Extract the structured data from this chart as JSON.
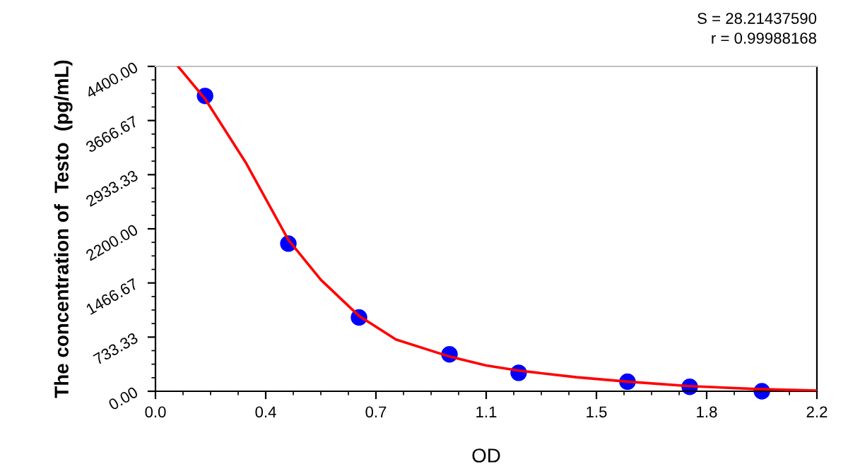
{
  "chart_data": {
    "type": "scatter",
    "xlabel": "OD",
    "ylabel": "The concentration of  Testo  (pg/mL)",
    "annotations": [
      "S = 28.21437590",
      "r = 0.99988168"
    ],
    "series": [
      {
        "color": "#0000ff",
        "marker": "circle",
        "x": [
          0.165,
          0.442,
          0.677,
          0.978,
          1.208,
          1.57,
          1.777,
          2.017
        ],
        "values": [
          4000,
          2000,
          1000,
          500,
          250,
          130,
          60,
          0
        ]
      },
      {
        "type": "line",
        "color": "#ff0000",
        "marker": "none",
        "line_style": "solid",
        "x": [
          0.075,
          0.165,
          0.3,
          0.442,
          0.55,
          0.677,
          0.8,
          0.978,
          1.1,
          1.208,
          1.4,
          1.57,
          1.777,
          2.0,
          2.2
        ],
        "values": [
          4400,
          3960,
          3100,
          2050,
          1510,
          1020,
          700,
          470,
          350,
          280,
          190,
          130,
          70,
          30,
          10
        ]
      }
    ],
    "xlim": [
      0.0,
      2.2
    ],
    "ylim": [
      0.0,
      4400.0
    ],
    "xticks": [
      {
        "value": 0.0,
        "label": "0.0"
      },
      {
        "value": 0.3667,
        "label": "0.4"
      },
      {
        "value": 0.7333,
        "label": "0.7"
      },
      {
        "value": 1.1,
        "label": "1.1"
      },
      {
        "value": 1.4667,
        "label": "1.5"
      },
      {
        "value": 1.8333,
        "label": "1.8"
      },
      {
        "value": 2.2,
        "label": "2.2"
      }
    ],
    "yticks": [
      {
        "value": 0,
        "label": "0.00"
      },
      {
        "value": 733.33,
        "label": "733.33"
      },
      {
        "value": 1466.67,
        "label": "1466.67"
      },
      {
        "value": 2200,
        "label": "2200.00"
      },
      {
        "value": 2933.33,
        "label": "2933.33"
      },
      {
        "value": 3666.67,
        "label": "3666.67"
      },
      {
        "value": 4400,
        "label": "4400.00"
      }
    ],
    "grid": false,
    "legend": false
  }
}
